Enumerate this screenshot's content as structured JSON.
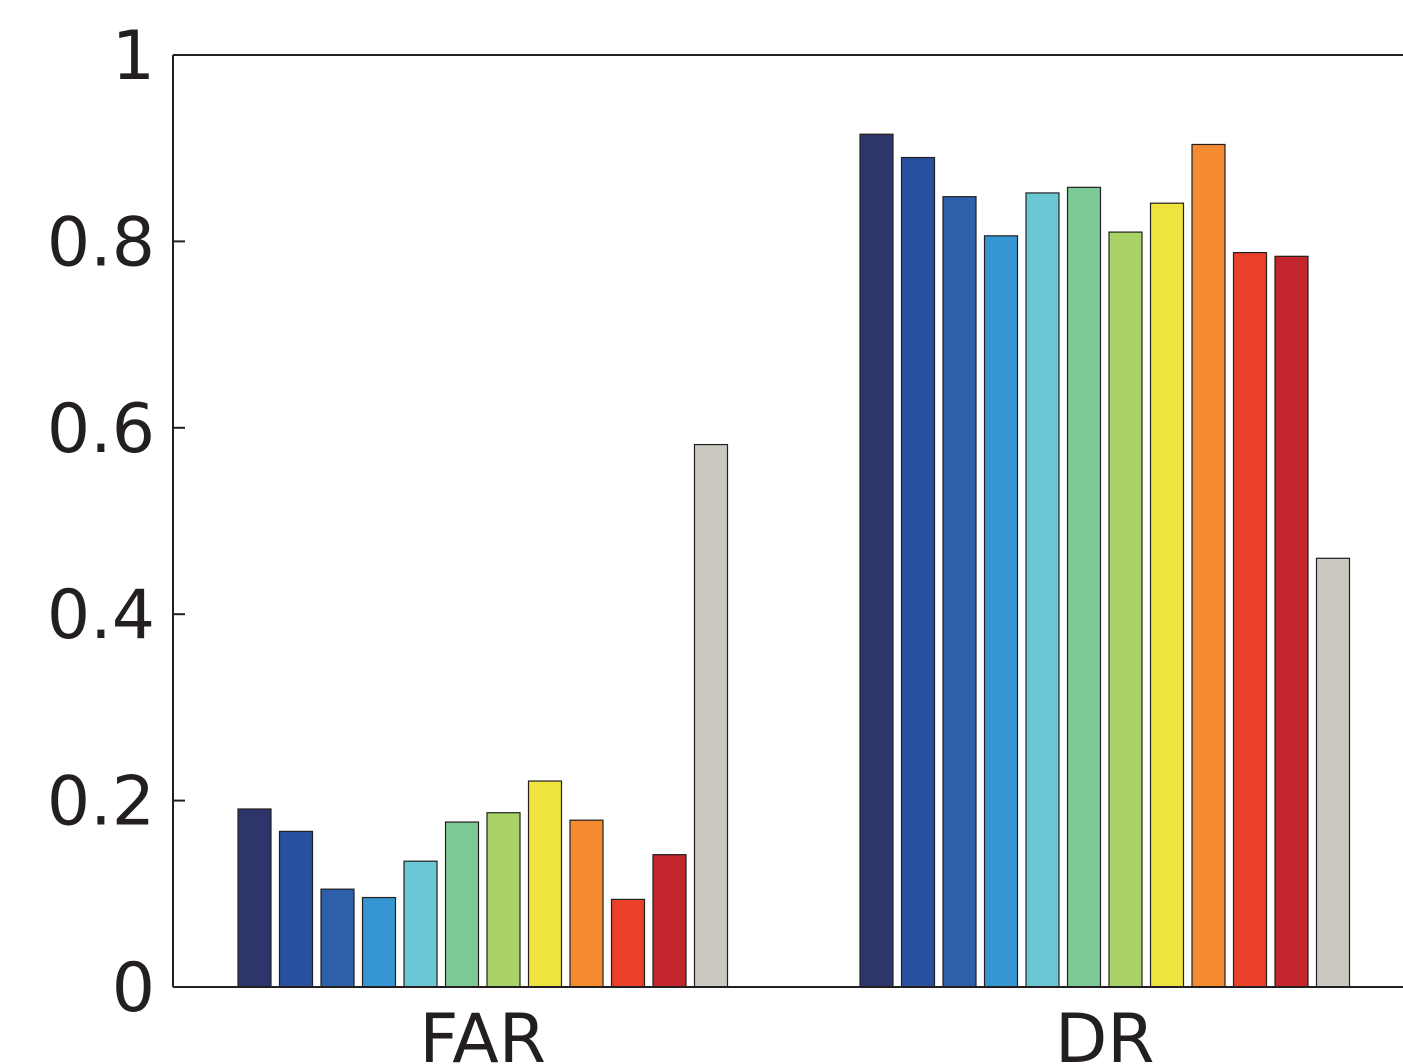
{
  "chart_data": {
    "type": "bar",
    "categories": [
      "FAR",
      "DR"
    ],
    "series": [
      {
        "color": "#2e356b",
        "values": [
          0.191,
          0.915
        ]
      },
      {
        "color": "#284fa0",
        "values": [
          0.167,
          0.89
        ]
      },
      {
        "color": "#2d5faa",
        "values": [
          0.105,
          0.848
        ]
      },
      {
        "color": "#3696d4",
        "values": [
          0.096,
          0.806
        ]
      },
      {
        "color": "#6ac8d4",
        "values": [
          0.135,
          0.852
        ]
      },
      {
        "color": "#7cc995",
        "values": [
          0.177,
          0.858
        ]
      },
      {
        "color": "#a9d267",
        "values": [
          0.187,
          0.81
        ]
      },
      {
        "color": "#efe33e",
        "values": [
          0.221,
          0.841
        ]
      },
      {
        "color": "#f48b31",
        "values": [
          0.179,
          0.904
        ]
      },
      {
        "color": "#eb402a",
        "values": [
          0.094,
          0.788
        ]
      },
      {
        "color": "#c3252c",
        "values": [
          0.142,
          0.784
        ]
      },
      {
        "color": "#cbc8c1",
        "values": [
          0.582,
          0.46
        ]
      }
    ],
    "yticks": [
      "0",
      "0.2",
      "0.4",
      "0.6",
      "0.8",
      "1"
    ],
    "ytick_values": [
      0,
      0.2,
      0.4,
      0.6,
      0.8,
      1
    ],
    "ylim": [
      0,
      1
    ],
    "xlabel": "",
    "ylabel": "",
    "title": "",
    "legend": "none",
    "grid": false
  }
}
